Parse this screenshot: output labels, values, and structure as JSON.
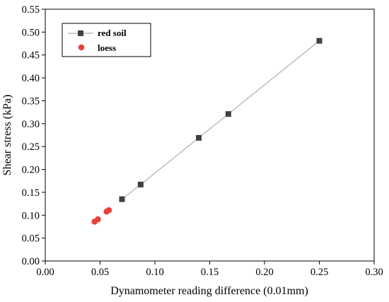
{
  "chart_data": {
    "type": "scatter",
    "title": "",
    "xlabel": "Dynamometer reading difference (0.01mm)",
    "ylabel": "Shear stress (kPa)",
    "xlim": [
      0.0,
      0.3
    ],
    "ylim": [
      0.0,
      0.55
    ],
    "x_ticks": [
      "0.00",
      "0.05",
      "0.10",
      "0.15",
      "0.20",
      "0.25",
      "0.30"
    ],
    "y_ticks": [
      "0.00",
      "0.05",
      "0.10",
      "0.15",
      "0.20",
      "0.25",
      "0.30",
      "0.35",
      "0.40",
      "0.45",
      "0.50",
      "0.55"
    ],
    "grid": false,
    "legend_position": "top-left",
    "series": [
      {
        "name": "red soil",
        "marker": "square",
        "color": "#404040",
        "line": true,
        "line_color": "#9e9e9e",
        "points": [
          {
            "x": 0.07,
            "y": 0.135
          },
          {
            "x": 0.087,
            "y": 0.167
          },
          {
            "x": 0.14,
            "y": 0.269
          },
          {
            "x": 0.167,
            "y": 0.321
          },
          {
            "x": 0.25,
            "y": 0.481
          }
        ]
      },
      {
        "name": "loess",
        "marker": "circle",
        "color": "#e8413b",
        "line": false,
        "points": [
          {
            "x": 0.045,
            "y": 0.086
          },
          {
            "x": 0.048,
            "y": 0.091
          },
          {
            "x": 0.056,
            "y": 0.108
          },
          {
            "x": 0.058,
            "y": 0.111
          }
        ]
      }
    ]
  }
}
